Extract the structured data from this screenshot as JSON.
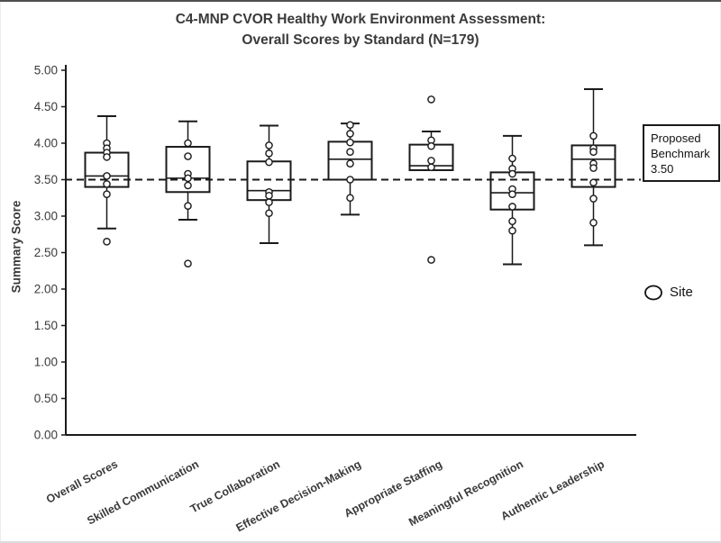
{
  "chart_data": {
    "type": "box",
    "title_lines": [
      "C4-MNP CVOR Healthy Work Environment Assessment:",
      "Overall Scores by Standard (N=179)"
    ],
    "ylabel": "Summary Score",
    "ylim": [
      0,
      5
    ],
    "y_tick_labels": [
      "5.00",
      "4.50",
      "4.00",
      "3.50",
      "3.00",
      "2.50",
      "2.00",
      "1.50",
      "1.00",
      "0.50",
      "0.00"
    ],
    "grid": "off",
    "benchmark": {
      "value": 3.5,
      "style": "dashed",
      "label_lines": [
        "Proposed",
        "Benchmark",
        "3.50"
      ]
    },
    "legend": {
      "marker": "circle-outline",
      "label": "Site",
      "position": "right"
    },
    "categories": [
      "Overall Scores",
      "Skilled Communication",
      "True Collaboration",
      "Effective Decision-Making",
      "Appropriate Staffing",
      "Meaningful Recognition",
      "Authentic Leadership"
    ],
    "series": [
      {
        "category": "Overall Scores",
        "whisker_low": 2.83,
        "q1": 3.4,
        "median": 3.55,
        "q3": 3.87,
        "whisker_high": 4.37,
        "outliers": [
          2.65
        ],
        "site_points": [
          4.0,
          3.93,
          3.87,
          3.81,
          3.55,
          3.44,
          3.3
        ]
      },
      {
        "category": "Skilled Communication",
        "whisker_low": 2.95,
        "q1": 3.33,
        "median": 3.52,
        "q3": 3.95,
        "whisker_high": 4.3,
        "outliers": [
          2.35
        ],
        "site_points": [
          4.0,
          3.82,
          3.58,
          3.52,
          3.42,
          3.14
        ]
      },
      {
        "category": "True Collaboration",
        "whisker_low": 2.63,
        "q1": 3.22,
        "median": 3.35,
        "q3": 3.75,
        "whisker_high": 4.24,
        "outliers": [],
        "site_points": [
          3.97,
          3.86,
          3.74,
          3.33,
          3.28,
          3.19,
          3.04
        ]
      },
      {
        "category": "Effective Decision-Making",
        "whisker_low": 3.02,
        "q1": 3.5,
        "median": 3.78,
        "q3": 4.02,
        "whisker_high": 4.27,
        "outliers": [],
        "site_points": [
          4.25,
          4.13,
          4.01,
          3.88,
          3.72,
          3.5,
          3.25
        ]
      },
      {
        "category": "Appropriate Staffing",
        "whisker_low": 3.63,
        "q1": 3.63,
        "median": 3.69,
        "q3": 3.98,
        "whisker_high": 4.16,
        "outliers": [
          4.6,
          2.4
        ],
        "site_points": [
          4.04,
          3.96,
          3.76,
          3.67
        ]
      },
      {
        "category": "Meaningful Recognition",
        "whisker_low": 2.34,
        "q1": 3.09,
        "median": 3.32,
        "q3": 3.6,
        "whisker_high": 4.1,
        "outliers": [],
        "site_points": [
          3.79,
          3.65,
          3.58,
          3.37,
          3.3,
          3.13,
          2.93,
          2.8
        ]
      },
      {
        "category": "Authentic Leadership",
        "whisker_low": 2.6,
        "q1": 3.4,
        "median": 3.78,
        "q3": 3.97,
        "whisker_high": 4.74,
        "outliers": [],
        "site_points": [
          4.1,
          3.93,
          3.88,
          3.72,
          3.66,
          3.46,
          3.24,
          2.91
        ]
      }
    ],
    "colors": {
      "line": "#1a1a1a",
      "text": "#3a3a3a",
      "background": "#ffffff"
    }
  }
}
